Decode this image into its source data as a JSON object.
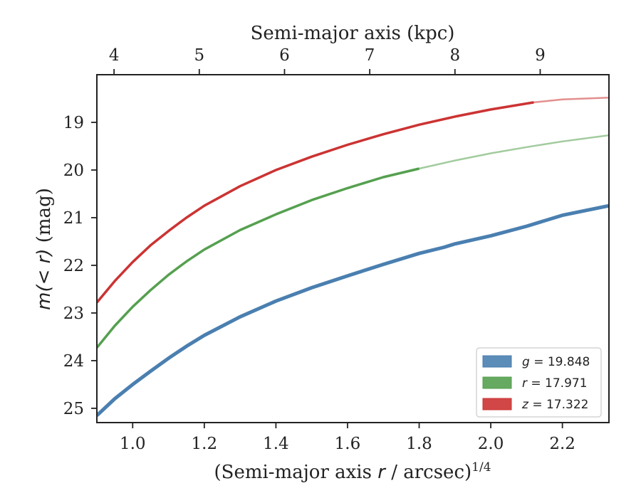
{
  "chart_data": {
    "type": "line",
    "title": "",
    "xlabel": "(Semi-major axis r / arcsec)",
    "xlabel_var": "r",
    "xlabel_exponent": "1/4",
    "ylabel": "m(< r) (mag)",
    "top_xlabel": "Semi-major axis (kpc)",
    "xlim": [
      0.9,
      2.33
    ],
    "ylim": [
      25.3,
      18.0
    ],
    "y_inverted": true,
    "grid": false,
    "legend_position": "lower-right",
    "x_ticks": [
      1.0,
      1.2,
      1.4,
      1.6,
      1.8,
      2.0,
      2.2
    ],
    "x_tick_labels": [
      "1.0",
      "1.2",
      "1.4",
      "1.6",
      "1.8",
      "2.0",
      "2.2"
    ],
    "y_ticks": [
      19,
      20,
      21,
      22,
      23,
      24,
      25
    ],
    "y_tick_labels": [
      "19",
      "20",
      "21",
      "22",
      "23",
      "24",
      "25"
    ],
    "top_ticks_kpc": [
      4,
      5,
      6,
      7,
      8,
      9
    ],
    "top_tick_labels": [
      "4",
      "5",
      "6",
      "7",
      "8",
      "9"
    ],
    "top_ticks_at_x": [
      0.948,
      1.186,
      1.424,
      1.662,
      1.9,
      2.138
    ],
    "series": [
      {
        "name": "g = 19.848",
        "legend_var": "g",
        "legend_value": "19.848",
        "color": "#4a7fb0",
        "x": [
          0.9,
          0.95,
          1.0,
          1.05,
          1.1,
          1.15,
          1.2,
          1.3,
          1.4,
          1.5,
          1.6,
          1.7,
          1.8,
          1.87,
          1.9,
          2.0,
          2.1,
          2.2,
          2.33
        ],
        "y": [
          25.15,
          24.8,
          24.5,
          24.22,
          23.95,
          23.7,
          23.47,
          23.08,
          22.75,
          22.47,
          22.22,
          21.98,
          21.75,
          21.62,
          21.55,
          21.38,
          21.18,
          20.95,
          20.75
        ],
        "solid_until_x": 2.33,
        "line_width": 5
      },
      {
        "name": "r = 17.971",
        "legend_var": "r",
        "legend_value": "17.971",
        "color": "#55a04f",
        "x": [
          0.9,
          0.95,
          1.0,
          1.05,
          1.1,
          1.15,
          1.2,
          1.3,
          1.4,
          1.5,
          1.6,
          1.7,
          1.8,
          1.9,
          2.0,
          2.1,
          2.2,
          2.33
        ],
        "y": [
          23.73,
          23.27,
          22.87,
          22.52,
          22.2,
          21.92,
          21.67,
          21.26,
          20.93,
          20.63,
          20.38,
          20.15,
          19.97,
          19.8,
          19.65,
          19.52,
          19.4,
          19.27
        ],
        "solid_until_x": 1.8,
        "line_width": 3.5
      },
      {
        "name": "z = 17.322",
        "legend_var": "z",
        "legend_value": "17.322",
        "color": "#cc3333",
        "x": [
          0.9,
          0.95,
          1.0,
          1.05,
          1.1,
          1.15,
          1.2,
          1.3,
          1.4,
          1.5,
          1.6,
          1.7,
          1.8,
          1.9,
          2.0,
          2.12,
          2.2,
          2.33
        ],
        "y": [
          22.78,
          22.33,
          21.93,
          21.58,
          21.28,
          21.0,
          20.75,
          20.34,
          20.0,
          19.72,
          19.47,
          19.25,
          19.05,
          18.88,
          18.73,
          18.58,
          18.52,
          18.48
        ],
        "solid_until_x": 2.12,
        "line_width": 3.5
      }
    ]
  }
}
